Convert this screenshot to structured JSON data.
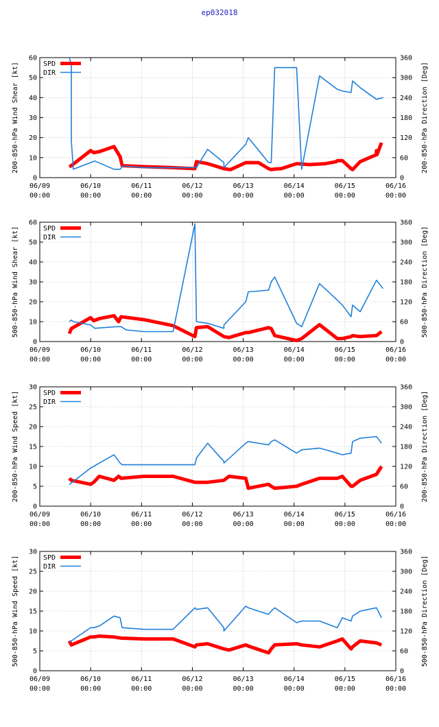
{
  "title": "ep032018",
  "colors": {
    "spd": "#ff0000",
    "dir": "#1e7fdc",
    "axis": "#000000",
    "grid": "#a0a0a0"
  },
  "chart_data": [
    {
      "type": "line",
      "ylabel_left": "200-850-hPa Wind Shear [kt]",
      "ylabel_right": "200-850-hPa Direction [Deg]",
      "ylim_left": [
        0,
        60
      ],
      "yticks_left": [
        "0",
        "10",
        "20",
        "30",
        "40",
        "50",
        "60"
      ],
      "ylim_right": [
        0,
        360
      ],
      "yticks_right": [
        "0",
        "60",
        "120",
        "180",
        "240",
        "300",
        "360"
      ],
      "xlim": [
        0,
        7
      ],
      "xticks": [
        [
          "06/09",
          "00:00"
        ],
        [
          "06/10",
          "00:00"
        ],
        [
          "06/11",
          "00:00"
        ],
        [
          "06/12",
          "00:00"
        ],
        [
          "06/13",
          "00:00"
        ],
        [
          "06/14",
          "00:00"
        ],
        [
          "06/15",
          "00:00"
        ],
        [
          "06/16",
          "00:00"
        ]
      ],
      "grid": true,
      "legend": "top-left",
      "series": [
        {
          "name": "SPD",
          "axis": "left",
          "x": [
            0.58,
            0.62,
            1.0,
            1.06,
            1.17,
            1.46,
            1.58,
            1.62,
            2.05,
            2.62,
            3.05,
            3.08,
            3.3,
            3.62,
            3.75,
            4.05,
            4.12,
            4.3,
            4.5,
            4.55,
            4.62,
            4.75,
            5.05,
            5.3,
            5.62,
            5.83,
            5.85,
            5.95,
            6.12,
            6.15,
            6.3,
            6.62,
            6.62,
            6.63,
            6.72
          ],
          "y": [
            5.5,
            6.0,
            13.5,
            12.5,
            13.0,
            15.5,
            10.5,
            6.0,
            5.5,
            5.0,
            4.5,
            8.0,
            7.0,
            4.5,
            4.0,
            7.5,
            7.5,
            7.5,
            4.5,
            4.0,
            4.3,
            4.5,
            7.0,
            6.5,
            7.0,
            8.0,
            8.5,
            8.5,
            4.5,
            4.0,
            8.0,
            11.5,
            13.5,
            11.5,
            17.5
          ]
        },
        {
          "name": "DIR",
          "axis": "right",
          "x": [
            0.58,
            0.62,
            0.62,
            0.66,
            1.08,
            1.46,
            1.58,
            1.63,
            2.05,
            2.62,
            3.05,
            3.08,
            3.3,
            3.62,
            3.62,
            4.05,
            4.1,
            4.5,
            4.55,
            4.62,
            5.05,
            5.15,
            5.5,
            5.85,
            5.95,
            6.12,
            6.15,
            6.3,
            6.62,
            6.75
          ],
          "y": [
            360,
            340,
            110,
            25,
            50,
            25,
            25,
            35,
            30,
            30,
            30,
            30,
            85,
            45,
            30,
            100,
            120,
            45,
            45,
            330,
            330,
            25,
            305,
            265,
            260,
            255,
            290,
            270,
            235,
            240
          ]
        }
      ]
    },
    {
      "type": "line",
      "ylabel_left": "500-850-hPa Wind Shear [kt]",
      "ylabel_right": "500-850-hPa Direction [Deg]",
      "ylim_left": [
        0,
        60
      ],
      "yticks_left": [
        "0",
        "10",
        "20",
        "30",
        "40",
        "50",
        "60"
      ],
      "ylim_right": [
        0,
        360
      ],
      "yticks_right": [
        "0",
        "60",
        "120",
        "180",
        "240",
        "300",
        "360"
      ],
      "xlim": [
        0,
        7
      ],
      "xticks": [
        [
          "06/09",
          "00:00"
        ],
        [
          "06/10",
          "00:00"
        ],
        [
          "06/11",
          "00:00"
        ],
        [
          "06/12",
          "00:00"
        ],
        [
          "06/13",
          "00:00"
        ],
        [
          "06/14",
          "00:00"
        ],
        [
          "06/15",
          "00:00"
        ],
        [
          "06/16",
          "00:00"
        ]
      ],
      "grid": true,
      "legend": "top-left",
      "series": [
        {
          "name": "SPD",
          "axis": "left",
          "x": [
            0.58,
            0.62,
            1.0,
            1.06,
            1.17,
            1.46,
            1.55,
            1.6,
            2.05,
            2.62,
            3.05,
            3.08,
            3.3,
            3.62,
            3.72,
            4.05,
            4.1,
            4.5,
            4.55,
            4.62,
            5.05,
            5.15,
            5.5,
            5.85,
            5.95,
            6.12,
            6.15,
            6.3,
            6.62,
            6.72
          ],
          "y": [
            4.0,
            6.5,
            12.0,
            10.5,
            11.5,
            13.0,
            10.0,
            12.5,
            11.0,
            8.0,
            2.5,
            7.0,
            7.5,
            2.5,
            2.0,
            4.5,
            4.5,
            7.0,
            6.5,
            3.0,
            0.5,
            1.5,
            8.5,
            1.5,
            1.5,
            2.5,
            3.0,
            2.5,
            3.0,
            5.0
          ]
        },
        {
          "name": "DIR",
          "axis": "right",
          "x": [
            0.58,
            0.62,
            0.66,
            1.0,
            1.08,
            1.5,
            1.6,
            1.7,
            2.05,
            2.62,
            3.05,
            3.08,
            3.3,
            3.62,
            3.62,
            4.05,
            4.1,
            4.5,
            4.55,
            4.62,
            5.05,
            5.15,
            5.5,
            5.85,
            5.95,
            6.12,
            6.15,
            6.3,
            6.62,
            6.75
          ],
          "y": [
            60,
            65,
            60,
            50,
            40,
            45,
            45,
            35,
            30,
            30,
            355,
            60,
            55,
            40,
            50,
            120,
            150,
            155,
            180,
            195,
            55,
            45,
            175,
            125,
            110,
            75,
            110,
            90,
            185,
            160
          ]
        }
      ]
    },
    {
      "type": "line",
      "ylabel_left": "200-850-hPa Wind Speed [kt]",
      "ylabel_right": "200-850-hPa Direction [Deg]",
      "ylim_left": [
        0,
        30
      ],
      "yticks_left": [
        "0",
        "5",
        "10",
        "15",
        "20",
        "25",
        "30"
      ],
      "ylim_right": [
        0,
        360
      ],
      "yticks_right": [
        "0",
        "60",
        "120",
        "180",
        "240",
        "300",
        "360"
      ],
      "xlim": [
        0,
        7
      ],
      "xticks": [
        [
          "06/09",
          "00:00"
        ],
        [
          "06/10",
          "00:00"
        ],
        [
          "06/11",
          "00:00"
        ],
        [
          "06/12",
          "00:00"
        ],
        [
          "06/13",
          "00:00"
        ],
        [
          "06/14",
          "00:00"
        ],
        [
          "06/15",
          "00:00"
        ],
        [
          "06/16",
          "00:00"
        ]
      ],
      "grid": true,
      "legend": "top-left",
      "series": [
        {
          "name": "SPD",
          "axis": "left",
          "x": [
            0.58,
            0.62,
            1.0,
            1.06,
            1.17,
            1.46,
            1.55,
            1.6,
            2.05,
            2.62,
            3.05,
            3.08,
            3.3,
            3.62,
            3.72,
            4.05,
            4.1,
            4.5,
            4.55,
            4.62,
            5.05,
            5.15,
            5.5,
            5.85,
            5.95,
            6.12,
            6.15,
            6.3,
            6.62,
            6.72
          ],
          "y": [
            7.0,
            6.5,
            5.5,
            6.0,
            7.5,
            6.5,
            7.5,
            7.0,
            7.5,
            7.5,
            6.0,
            6.0,
            6.0,
            6.5,
            7.5,
            7.0,
            4.5,
            5.5,
            5.0,
            4.5,
            5.0,
            5.5,
            7.0,
            7.0,
            7.5,
            5.0,
            5.0,
            6.5,
            8.0,
            10.0
          ]
        },
        {
          "name": "DIR",
          "axis": "right",
          "x": [
            0.58,
            0.62,
            1.0,
            1.06,
            1.17,
            1.46,
            1.58,
            1.62,
            2.05,
            2.62,
            3.05,
            3.08,
            3.3,
            3.62,
            3.62,
            4.05,
            4.1,
            4.5,
            4.55,
            4.62,
            5.05,
            5.15,
            5.5,
            5.85,
            5.95,
            6.12,
            6.15,
            6.3,
            6.62,
            6.72
          ],
          "y": [
            65,
            70,
            115,
            120,
            130,
            155,
            130,
            125,
            125,
            125,
            125,
            145,
            190,
            135,
            130,
            190,
            195,
            185,
            195,
            200,
            160,
            170,
            175,
            160,
            155,
            160,
            195,
            205,
            210,
            190
          ]
        }
      ]
    },
    {
      "type": "line",
      "ylabel_left": "500-850-hPa Wind Speed [kt]",
      "ylabel_right": "500-850-hPa Direction [Deg]",
      "ylim_left": [
        0,
        30
      ],
      "yticks_left": [
        "0",
        "5",
        "10",
        "15",
        "20",
        "25",
        "30"
      ],
      "ylim_right": [
        0,
        360
      ],
      "yticks_right": [
        "0",
        "60",
        "120",
        "180",
        "240",
        "300",
        "360"
      ],
      "xlim": [
        0,
        7
      ],
      "xticks": [
        [
          "06/09",
          "00:00"
        ],
        [
          "06/10",
          "00:00"
        ],
        [
          "06/11",
          "00:00"
        ],
        [
          "06/12",
          "00:00"
        ],
        [
          "06/13",
          "00:00"
        ],
        [
          "06/14",
          "00:00"
        ],
        [
          "06/15",
          "00:00"
        ],
        [
          "06/16",
          "00:00"
        ]
      ],
      "grid": true,
      "legend": "top-left",
      "series": [
        {
          "name": "SPD",
          "axis": "left",
          "x": [
            0.58,
            0.62,
            1.0,
            1.06,
            1.17,
            1.46,
            1.55,
            1.6,
            2.05,
            2.62,
            3.05,
            3.08,
            3.3,
            3.62,
            3.72,
            4.05,
            4.1,
            4.5,
            4.55,
            4.62,
            5.05,
            5.15,
            5.5,
            5.85,
            5.95,
            6.12,
            6.15,
            6.3,
            6.62,
            6.72
          ],
          "y": [
            7.5,
            6.5,
            8.5,
            8.5,
            8.7,
            8.5,
            8.3,
            8.2,
            8.0,
            8.0,
            6.0,
            6.5,
            6.8,
            5.5,
            5.2,
            6.5,
            6.2,
            4.5,
            5.5,
            6.5,
            6.8,
            6.5,
            6.0,
            7.5,
            8.0,
            5.5,
            6.0,
            7.5,
            7.0,
            6.5
          ]
        },
        {
          "name": "DIR",
          "axis": "right",
          "x": [
            0.58,
            0.62,
            1.0,
            1.06,
            1.17,
            1.46,
            1.58,
            1.62,
            2.05,
            2.62,
            3.05,
            3.08,
            3.3,
            3.62,
            3.62,
            4.05,
            4.1,
            4.5,
            4.55,
            4.62,
            5.05,
            5.15,
            5.5,
            5.85,
            5.95,
            6.12,
            6.15,
            6.3,
            6.62,
            6.72
          ],
          "y": [
            85,
            90,
            130,
            130,
            135,
            165,
            160,
            130,
            125,
            125,
            190,
            185,
            190,
            130,
            120,
            195,
            190,
            170,
            180,
            190,
            145,
            150,
            150,
            130,
            160,
            150,
            165,
            180,
            190,
            160
          ]
        }
      ]
    }
  ]
}
